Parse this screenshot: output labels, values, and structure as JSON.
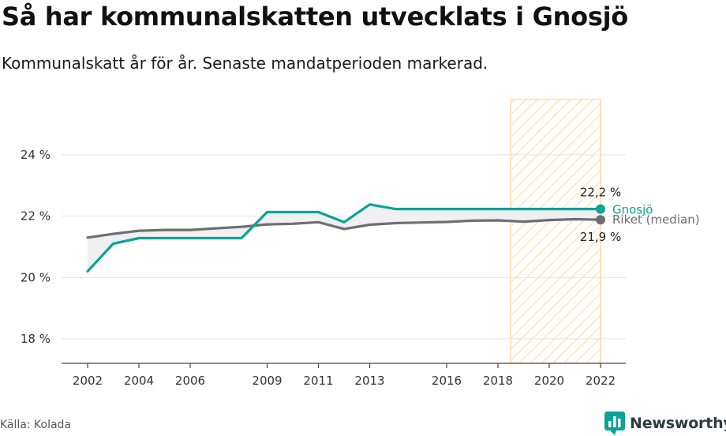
{
  "title": "Så har kommunalskatten utvecklats i Gnosjö",
  "subtitle": "Kommunalskatt år för år. Senaste mandatperioden markerad.",
  "source": "Källa: Kolada",
  "brand": {
    "name": "Newsworthy",
    "icon": "newsworthy-logo-icon"
  },
  "colors": {
    "gnosjo": "#0aa396",
    "riket": "#6f6f73",
    "highlight_stroke": "#fbd38d",
    "gap_fill": "#f0f0f2",
    "grid": "#e2e2e2",
    "brand": "#0aa396"
  },
  "chart_data": {
    "type": "line",
    "x": [
      2002,
      2003,
      2004,
      2005,
      2006,
      2007,
      2008,
      2009,
      2010,
      2011,
      2012,
      2013,
      2014,
      2015,
      2016,
      2017,
      2018,
      2019,
      2020,
      2021,
      2022
    ],
    "x_ticks": [
      2002,
      2004,
      2006,
      2009,
      2011,
      2013,
      2016,
      2018,
      2020,
      2022
    ],
    "x_tick_labels": [
      "2002",
      "2004",
      "2006",
      "2009",
      "2011",
      "2013",
      "2016",
      "2018",
      "2020",
      "2022"
    ],
    "ylim": [
      17.2,
      25.8
    ],
    "y_ticks": [
      18,
      20,
      22,
      24
    ],
    "y_tick_labels": [
      "18 %",
      "20 %",
      "22 %",
      "24 %"
    ],
    "grid": true,
    "highlight_period": [
      2018.5,
      2022
    ],
    "series": [
      {
        "name": "Gnosjö",
        "values": [
          20.2,
          21.1,
          21.28,
          21.28,
          21.28,
          21.28,
          21.28,
          22.13,
          22.13,
          22.13,
          21.8,
          22.38,
          22.23,
          22.23,
          22.23,
          22.23,
          22.23,
          22.23,
          22.23,
          22.23,
          22.23
        ],
        "end_label": "22,2 %"
      },
      {
        "name": "Riket (median)",
        "values": [
          21.3,
          21.42,
          21.52,
          21.55,
          21.55,
          21.6,
          21.65,
          21.73,
          21.75,
          21.8,
          21.58,
          21.72,
          21.77,
          21.79,
          21.81,
          21.85,
          21.86,
          21.82,
          21.87,
          21.9,
          21.88
        ],
        "end_label": "21,9 %"
      }
    ]
  }
}
